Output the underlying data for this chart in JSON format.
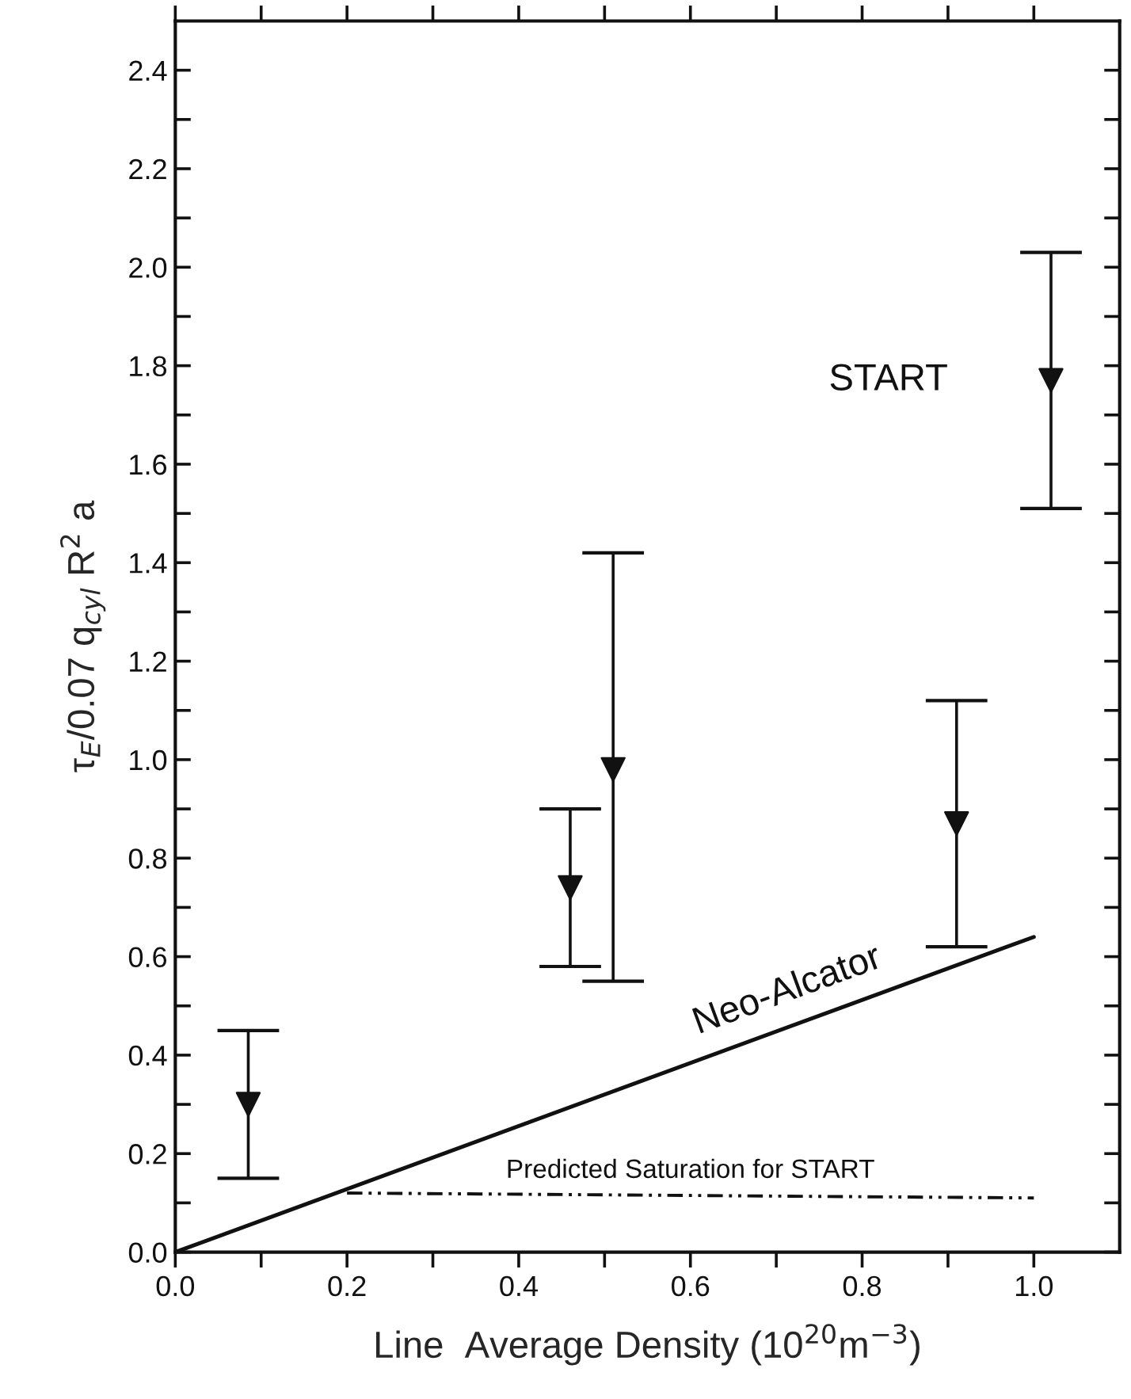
{
  "chart_data": {
    "type": "scatter",
    "xlabel": "Line  Average Density (10$^{20}$m$^{−3}$)",
    "ylabel": "τ$_{E}$/0.07 q$_{cyl}$ R$^{2}$ a",
    "xlim": [
      0,
      1.1
    ],
    "ylim": [
      0,
      2.5
    ],
    "xticks": [
      {
        "value": 0.0,
        "label": "0.0"
      },
      {
        "value": 0.1,
        "label": null
      },
      0.2,
      {
        "value": 0.3,
        "label": null
      },
      0.4,
      {
        "value": 0.5,
        "label": null
      },
      0.6,
      {
        "value": 0.7,
        "label": null
      },
      0.8,
      {
        "value": 0.9,
        "label": null
      },
      {
        "value": 1.0,
        "label": "1.0"
      }
    ],
    "yticks": [
      {
        "value": 0.0,
        "label": "0.0"
      },
      {
        "value": 0.1,
        "label": null
      },
      0.2,
      {
        "value": 0.3,
        "label": null
      },
      0.4,
      {
        "value": 0.5,
        "label": null
      },
      0.6,
      {
        "value": 0.7,
        "label": null
      },
      0.8,
      {
        "value": 0.9,
        "label": null
      },
      {
        "value": 1.0,
        "label": "1.0"
      },
      {
        "value": 1.1,
        "label": null
      },
      1.2,
      {
        "value": 1.3,
        "label": null
      },
      1.4,
      {
        "value": 1.5,
        "label": null
      },
      1.6,
      {
        "value": 1.7,
        "label": null
      },
      1.8,
      {
        "value": 1.9,
        "label": null
      },
      {
        "value": 2.0,
        "label": "2.0"
      },
      {
        "value": 2.1,
        "label": null
      },
      2.2,
      {
        "value": 2.3,
        "label": null
      },
      2.4
    ],
    "grid": false,
    "legend": false,
    "series": [
      {
        "name": "START",
        "color": "#111111",
        "marker": "triangle",
        "x": [
          0.085,
          0.46,
          0.51,
          0.91,
          1.02
        ],
        "values": [
          0.3,
          0.74,
          0.98,
          0.87,
          1.77
        ],
        "errors": [
          [
            0.15,
            0.45
          ],
          [
            0.58,
            0.9
          ],
          [
            0.55,
            1.42
          ],
          [
            0.62,
            1.12
          ],
          [
            1.51,
            2.03
          ]
        ]
      },
      {
        "name": "Neo-Alcator",
        "type": "line",
        "color": "#111111",
        "line_style": "solid",
        "x": [
          0.0,
          1.0
        ],
        "values": [
          0.0,
          0.64
        ]
      },
      {
        "name": "Predicted Saturation for START",
        "type": "line",
        "color": "#111111",
        "line_style": "dashed",
        "x": [
          0.2,
          1.0
        ],
        "values": [
          0.12,
          0.11
        ]
      }
    ]
  }
}
